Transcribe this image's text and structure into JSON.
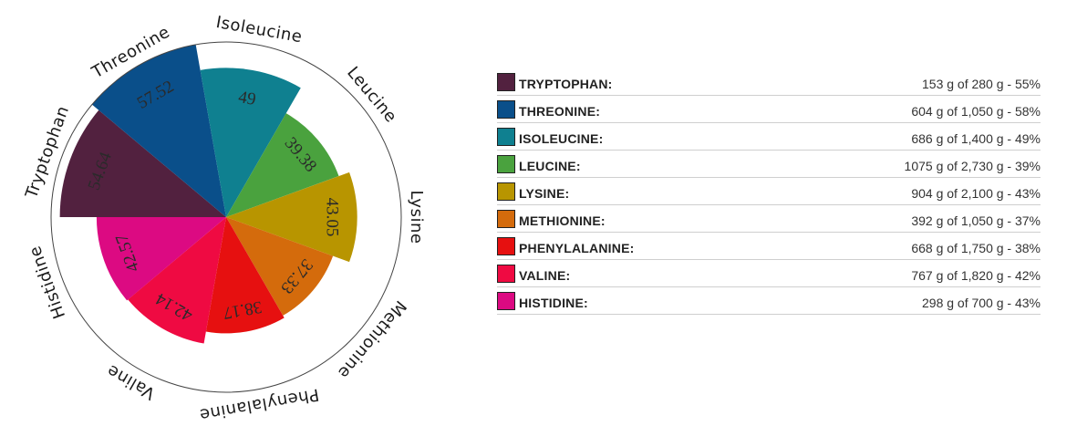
{
  "chart_data": {
    "type": "pie",
    "categories": [
      "Tryptophan",
      "Threonine",
      "Isoleucine",
      "Leucine",
      "Lysine",
      "Methionine",
      "Phenylalanine",
      "Valine",
      "Histidine"
    ],
    "values": [
      54.64,
      57.52,
      49,
      39.38,
      43.05,
      37.33,
      38.17,
      42.14,
      42.57
    ],
    "value_labels": [
      "54.64",
      "57.52",
      "49",
      "39.38",
      "43.05",
      "37.33",
      "38.17",
      "42.14",
      "42.57"
    ],
    "colors": [
      "#52213f",
      "#0a4f8a",
      "#0f8090",
      "#4aa23e",
      "#b89500",
      "#d46b0c",
      "#e61010",
      "#ef0a42",
      "#dc0a82"
    ],
    "slice_geometry": "equal angular slices; value shown by radial length",
    "max_value": 57.52,
    "start": "left-horizontal, clockwise"
  },
  "legend": {
    "items": [
      {
        "name": "TRYPTOPHAN:",
        "detail": "153 g of 280 g - 55%",
        "color": "#52213f"
      },
      {
        "name": "THREONINE:",
        "detail": "604 g of 1,050 g - 58%",
        "color": "#0a4f8a"
      },
      {
        "name": "ISOLEUCINE:",
        "detail": "686 g of 1,400 g - 49%",
        "color": "#0f8090"
      },
      {
        "name": "LEUCINE:",
        "detail": "1075 g of 2,730 g - 39%",
        "color": "#4aa23e"
      },
      {
        "name": "LYSINE:",
        "detail": "904 g of 2,100 g - 43%",
        "color": "#b89500"
      },
      {
        "name": "METHIONINE:",
        "detail": "392 g of 1,050 g - 37%",
        "color": "#d46b0c"
      },
      {
        "name": "PHENYLALANINE:",
        "detail": "668 g of 1,750 g - 38%",
        "color": "#e61010"
      },
      {
        "name": "VALINE:",
        "detail": "767 g of 1,820 g - 42%",
        "color": "#ef0a42"
      },
      {
        "name": "HISTIDINE:",
        "detail": "298 g of 700 g - 43%",
        "color": "#dc0a82"
      }
    ]
  }
}
